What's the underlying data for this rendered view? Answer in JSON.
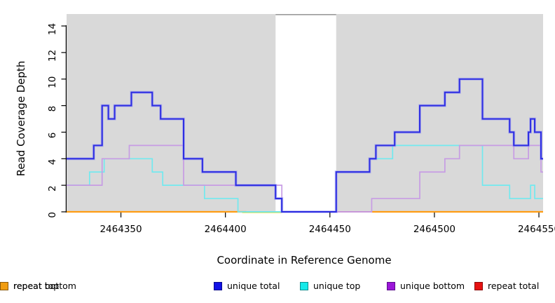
{
  "chart_data": {
    "type": "line",
    "subtype": "step-coverage-plot",
    "title": "",
    "xlabel": "Coordinate in Reference Genome",
    "ylabel": "Read Coverage Depth",
    "xlim": [
      2464324,
      2464552
    ],
    "ylim": [
      0,
      14.9
    ],
    "xticks": [
      2464350,
      2464400,
      2464450,
      2464500,
      2464550
    ],
    "yticks": [
      0,
      2,
      4,
      6,
      8,
      10,
      12,
      14
    ],
    "grid": false,
    "page_background": "#ffffff",
    "shaded_regions": [
      {
        "from": 2464324,
        "to": 2464424,
        "color": "#d9d9d9"
      },
      {
        "from": 2464453,
        "to": 2464552,
        "color": "#d9d9d9"
      }
    ],
    "gap_region": {
      "from": 2464424,
      "to": 2464453,
      "top_border_color": "#9a9a9a"
    },
    "series": [
      {
        "name": "unique top",
        "color": "#72e9ef",
        "width": 1.7,
        "xend": 2464552,
        "steps": [
          [
            2464324,
            2
          ],
          [
            2464335,
            3
          ],
          [
            2464342,
            4
          ],
          [
            2464365,
            3
          ],
          [
            2464370,
            2
          ],
          [
            2464390,
            1
          ],
          [
            2464406,
            0
          ],
          [
            2464453,
            3
          ],
          [
            2464469,
            4
          ],
          [
            2464480,
            5
          ],
          [
            2464523,
            2
          ],
          [
            2464536,
            1
          ],
          [
            2464546,
            2
          ],
          [
            2464548,
            1
          ]
        ]
      },
      {
        "name": "unique bottom",
        "color": "#c79ce4",
        "width": 1.7,
        "xend": 2464552,
        "steps": [
          [
            2464324,
            2
          ],
          [
            2464341,
            4
          ],
          [
            2464354,
            5
          ],
          [
            2464380,
            2
          ],
          [
            2464427,
            0
          ],
          [
            2464470,
            1
          ],
          [
            2464493,
            3
          ],
          [
            2464505,
            4
          ],
          [
            2464512,
            5
          ],
          [
            2464538,
            4
          ],
          [
            2464545,
            5
          ],
          [
            2464551,
            3
          ]
        ]
      },
      {
        "name": "unique total",
        "color": "#2e2ee2",
        "halo": "#9f9ff2",
        "width": 2.1,
        "xend": 2464552,
        "steps": [
          [
            2464324,
            4
          ],
          [
            2464337,
            5
          ],
          [
            2464341,
            8
          ],
          [
            2464344,
            7
          ],
          [
            2464347,
            8
          ],
          [
            2464355,
            9
          ],
          [
            2464365,
            8
          ],
          [
            2464369,
            7
          ],
          [
            2464380,
            4
          ],
          [
            2464389,
            3
          ],
          [
            2464405,
            2
          ],
          [
            2464424,
            1
          ],
          [
            2464427,
            0
          ],
          [
            2464453,
            3
          ],
          [
            2464469,
            4
          ],
          [
            2464472,
            5
          ],
          [
            2464481,
            6
          ],
          [
            2464493,
            8
          ],
          [
            2464505,
            9
          ],
          [
            2464512,
            10
          ],
          [
            2464523,
            7
          ],
          [
            2464536,
            6
          ],
          [
            2464538,
            5
          ],
          [
            2464545,
            6
          ],
          [
            2464546,
            7
          ],
          [
            2464548,
            6
          ],
          [
            2464551,
            4
          ]
        ]
      }
    ],
    "baseline_segments": [
      {
        "name": "repeat bottom left",
        "color": "#ff9d14",
        "width": 2.2,
        "from": 2464324,
        "to": 2464410,
        "y": 0,
        "dy": 0
      },
      {
        "name": "repeat top",
        "color": "#ece86e",
        "width": 1.3,
        "from": 2464408,
        "to": 2464427,
        "y": 0,
        "dy": 1.4
      },
      {
        "name": "overlap green",
        "color": "#74c078",
        "width": 1.8,
        "from": 2464408,
        "to": 2464427,
        "y": 0,
        "dy": 0
      },
      {
        "name": "repeat total",
        "color": "#c25672",
        "width": 1.8,
        "from": 2464453,
        "to": 2464470,
        "y": 0,
        "dy": 0
      },
      {
        "name": "repeat bottom right",
        "color": "#ff9d14",
        "width": 2.2,
        "from": 2464470,
        "to": 2464552,
        "y": 0,
        "dy": 0
      }
    ],
    "legend": [
      {
        "label": "unique total",
        "fill": "#1212e6",
        "border": "#0a0a8c"
      },
      {
        "label": "unique top",
        "fill": "#16e9e9",
        "border": "#0d8f8f"
      },
      {
        "label": "unique bottom",
        "fill": "#9b16d8",
        "border": "#5c0a8c"
      },
      {
        "label": "repeat total",
        "fill": "#e61212",
        "border": "#8c0a0a"
      },
      {
        "label": "repeat top",
        "fill": "#f0f013",
        "border": "#8f8f0d"
      },
      {
        "label": "repeat bottom",
        "fill": "#f09c10",
        "border": "#8c5a0a"
      }
    ]
  }
}
